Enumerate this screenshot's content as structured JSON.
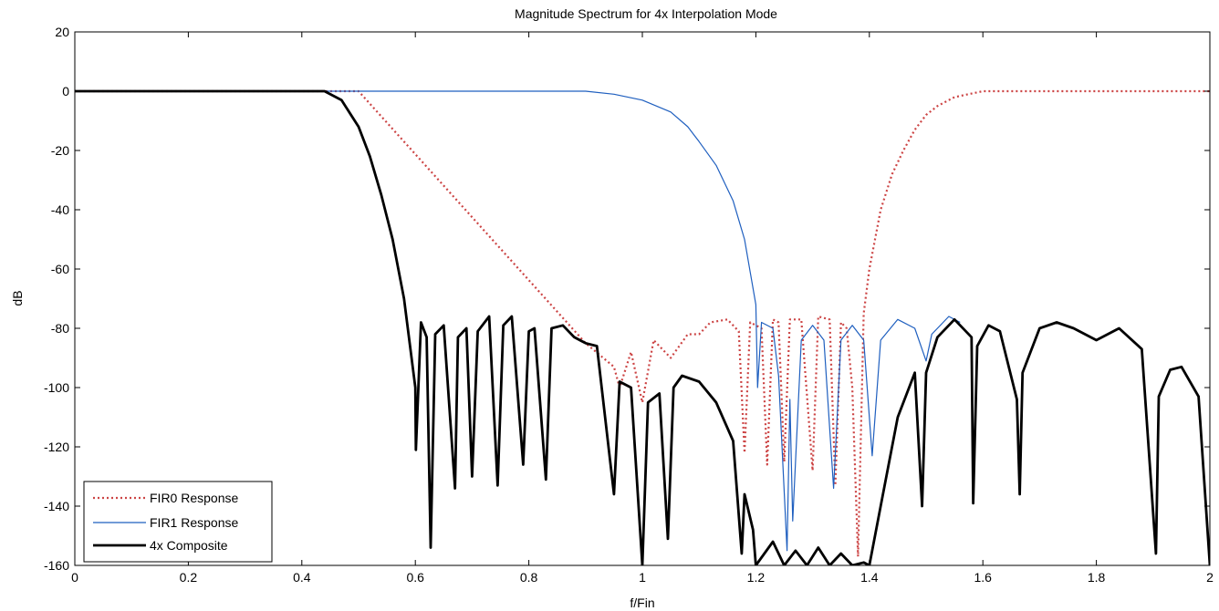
{
  "chart_data": {
    "type": "line",
    "title": "Magnitude Spectrum for 4x Interpolation Mode",
    "xlabel": "f/Fin",
    "ylabel": "dB",
    "xlim": [
      0,
      2
    ],
    "ylim": [
      -160,
      20
    ],
    "xticks": [
      0,
      0.2,
      0.4,
      0.6,
      0.8,
      1,
      1.2,
      1.4,
      1.6,
      1.8,
      2
    ],
    "xtick_labels": [
      "0",
      "0.2",
      "0.4",
      "0.6",
      "0.8",
      "1",
      "1.2",
      "1.4",
      "1.6",
      "1.8",
      "2"
    ],
    "yticks": [
      20,
      0,
      -20,
      -40,
      -60,
      -80,
      -100,
      -120,
      -140,
      -160
    ],
    "ytick_labels": [
      "20",
      "0",
      "-20",
      "-40",
      "-60",
      "-80",
      "-100",
      "-120",
      "-140",
      "-160"
    ],
    "grid": false,
    "legend_position": "bottom-left",
    "series": [
      {
        "name": "FIR0 Response",
        "color": "#cc4444",
        "style": "dotted",
        "points": [
          [
            0,
            0
          ],
          [
            0.5,
            0
          ],
          [
            0.9,
            -85
          ],
          [
            0.95,
            -93
          ],
          [
            0.96,
            -100
          ],
          [
            0.98,
            -88
          ],
          [
            1.0,
            -105
          ],
          [
            1.02,
            -84
          ],
          [
            1.05,
            -90
          ],
          [
            1.08,
            -82
          ],
          [
            1.1,
            -82
          ],
          [
            1.12,
            -78
          ],
          [
            1.15,
            -77
          ],
          [
            1.17,
            -81
          ],
          [
            1.18,
            -122
          ],
          [
            1.19,
            -78
          ],
          [
            1.21,
            -80
          ],
          [
            1.22,
            -126
          ],
          [
            1.23,
            -77
          ],
          [
            1.24,
            -78
          ],
          [
            1.25,
            -125
          ],
          [
            1.26,
            -77
          ],
          [
            1.28,
            -77
          ],
          [
            1.3,
            -128
          ],
          [
            1.31,
            -76
          ],
          [
            1.33,
            -77
          ],
          [
            1.34,
            -133
          ],
          [
            1.35,
            -78
          ],
          [
            1.36,
            -80
          ],
          [
            1.37,
            -100
          ],
          [
            1.38,
            -157
          ],
          [
            1.39,
            -75
          ],
          [
            1.4,
            -60
          ],
          [
            1.42,
            -40
          ],
          [
            1.44,
            -28
          ],
          [
            1.46,
            -20
          ],
          [
            1.48,
            -13
          ],
          [
            1.5,
            -8
          ],
          [
            1.52,
            -5
          ],
          [
            1.55,
            -2
          ],
          [
            1.6,
            0
          ],
          [
            2.0,
            0
          ]
        ]
      },
      {
        "name": "FIR1 Response",
        "color": "#1f5fbf",
        "style": "solid",
        "points": [
          [
            0,
            0
          ],
          [
            0.9,
            0
          ],
          [
            0.95,
            -1
          ],
          [
            1.0,
            -3
          ],
          [
            1.05,
            -7
          ],
          [
            1.08,
            -12
          ],
          [
            1.1,
            -17
          ],
          [
            1.13,
            -25
          ],
          [
            1.16,
            -37
          ],
          [
            1.18,
            -50
          ],
          [
            1.19,
            -61
          ],
          [
            1.2,
            -72
          ],
          [
            1.203,
            -100
          ],
          [
            1.21,
            -78
          ],
          [
            1.23,
            -80
          ],
          [
            1.24,
            -96
          ],
          [
            1.255,
            -155
          ],
          [
            1.26,
            -104
          ],
          [
            1.265,
            -145
          ],
          [
            1.28,
            -84
          ],
          [
            1.3,
            -79
          ],
          [
            1.32,
            -84
          ],
          [
            1.337,
            -134
          ],
          [
            1.35,
            -84
          ],
          [
            1.37,
            -79
          ],
          [
            1.39,
            -84
          ],
          [
            1.405,
            -123
          ],
          [
            1.42,
            -84
          ],
          [
            1.45,
            -77
          ],
          [
            1.48,
            -80
          ],
          [
            1.5,
            -91
          ],
          [
            1.51,
            -82
          ],
          [
            1.54,
            -76
          ],
          [
            1.56,
            -78
          ]
        ]
      },
      {
        "name": "4x Composite",
        "color": "#000000",
        "style": "solid-thick",
        "points": [
          [
            0,
            0
          ],
          [
            0.44,
            0
          ],
          [
            0.47,
            -3
          ],
          [
            0.5,
            -12
          ],
          [
            0.52,
            -22
          ],
          [
            0.54,
            -35
          ],
          [
            0.56,
            -50
          ],
          [
            0.58,
            -70
          ],
          [
            0.6,
            -100
          ],
          [
            0.601,
            -121
          ],
          [
            0.61,
            -78
          ],
          [
            0.62,
            -83
          ],
          [
            0.627,
            -154
          ],
          [
            0.635,
            -82
          ],
          [
            0.65,
            -79
          ],
          [
            0.67,
            -134
          ],
          [
            0.675,
            -83
          ],
          [
            0.69,
            -80
          ],
          [
            0.7,
            -130
          ],
          [
            0.71,
            -81
          ],
          [
            0.73,
            -76
          ],
          [
            0.745,
            -133
          ],
          [
            0.755,
            -79
          ],
          [
            0.77,
            -76
          ],
          [
            0.79,
            -126
          ],
          [
            0.8,
            -81
          ],
          [
            0.81,
            -80
          ],
          [
            0.83,
            -131
          ],
          [
            0.84,
            -80
          ],
          [
            0.86,
            -79
          ],
          [
            0.88,
            -83
          ],
          [
            0.9,
            -85
          ],
          [
            0.92,
            -86
          ],
          [
            0.95,
            -136
          ],
          [
            0.96,
            -98
          ],
          [
            0.98,
            -100
          ],
          [
            1.0,
            -160
          ],
          [
            1.01,
            -105
          ],
          [
            1.03,
            -102
          ],
          [
            1.045,
            -151
          ],
          [
            1.055,
            -100
          ],
          [
            1.07,
            -96
          ],
          [
            1.1,
            -98
          ],
          [
            1.13,
            -105
          ],
          [
            1.16,
            -118
          ],
          [
            1.175,
            -156
          ],
          [
            1.18,
            -136
          ],
          [
            1.195,
            -148
          ],
          [
            1.2,
            -160
          ],
          [
            1.23,
            -152
          ],
          [
            1.25,
            -160
          ],
          [
            1.27,
            -155
          ],
          [
            1.29,
            -160
          ],
          [
            1.31,
            -154
          ],
          [
            1.33,
            -160
          ],
          [
            1.35,
            -156
          ],
          [
            1.37,
            -160
          ],
          [
            1.39,
            -159
          ],
          [
            1.4,
            -160
          ],
          [
            1.42,
            -140
          ],
          [
            1.45,
            -110
          ],
          [
            1.48,
            -95
          ],
          [
            1.493,
            -140
          ],
          [
            1.5,
            -95
          ],
          [
            1.52,
            -83
          ],
          [
            1.55,
            -77
          ],
          [
            1.58,
            -83
          ],
          [
            1.583,
            -139
          ],
          [
            1.59,
            -86
          ],
          [
            1.61,
            -79
          ],
          [
            1.63,
            -81
          ],
          [
            1.66,
            -104
          ],
          [
            1.665,
            -136
          ],
          [
            1.67,
            -95
          ],
          [
            1.7,
            -80
          ],
          [
            1.73,
            -78
          ],
          [
            1.76,
            -80
          ],
          [
            1.8,
            -84
          ],
          [
            1.84,
            -80
          ],
          [
            1.88,
            -87
          ],
          [
            1.905,
            -156
          ],
          [
            1.91,
            -103
          ],
          [
            1.93,
            -94
          ],
          [
            1.95,
            -93
          ],
          [
            1.98,
            -103
          ],
          [
            2.0,
            -160
          ]
        ]
      }
    ]
  }
}
